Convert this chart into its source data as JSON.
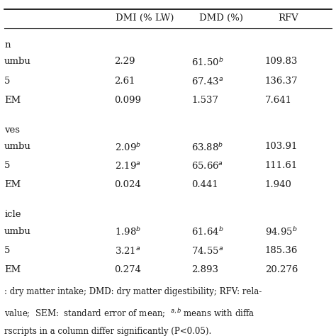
{
  "col_headers": [
    "DMI (% LW)",
    "DMD (%)",
    "RFV"
  ],
  "sections": [
    {
      "label": "n",
      "rows": [
        {
          "label": "umbu",
          "dmi": "2.29",
          "dmi_sup": "",
          "dmd": "61.50",
          "dmd_sup": "b",
          "rfv": "109.83",
          "rfv_sup": ""
        },
        {
          "label": "5",
          "dmi": "2.61",
          "dmi_sup": "",
          "dmd": "67.43",
          "dmd_sup": "a",
          "rfv": "136.37",
          "rfv_sup": ""
        },
        {
          "label": "EM",
          "dmi": "0.099",
          "dmi_sup": "",
          "dmd": "1.537",
          "dmd_sup": "",
          "rfv": "7.641",
          "rfv_sup": ""
        }
      ]
    },
    {
      "label": "ves",
      "rows": [
        {
          "label": "umbu",
          "dmi": "2.09",
          "dmi_sup": "b",
          "dmd": "63.88",
          "dmd_sup": "b",
          "rfv": "103.91",
          "rfv_sup": ""
        },
        {
          "label": "5",
          "dmi": "2.19",
          "dmi_sup": "a",
          "dmd": "65.66",
          "dmd_sup": "a",
          "rfv": "111.61",
          "rfv_sup": ""
        },
        {
          "label": "EM",
          "dmi": "0.024",
          "dmi_sup": "",
          "dmd": "0.441",
          "dmd_sup": "",
          "rfv": "1.940",
          "rfv_sup": ""
        }
      ]
    },
    {
      "label": "icle",
      "rows": [
        {
          "label": "umbu",
          "dmi": "1.98",
          "dmi_sup": "b",
          "dmd": "61.64",
          "dmd_sup": "b",
          "rfv": "94.95",
          "rfv_sup": "b"
        },
        {
          "label": "5",
          "dmi": "3.21",
          "dmi_sup": "a",
          "dmd": "74.55",
          "dmd_sup": "a",
          "rfv": "185.36",
          "rfv_sup": ""
        },
        {
          "label": "EM",
          "dmi": "0.274",
          "dmi_sup": "",
          "dmd": "2.893",
          "dmd_sup": "",
          "rfv": "20.276",
          "rfv_sup": ""
        }
      ]
    }
  ],
  "footnote_lines": [
    ": dry matter intake; DMD: dry matter digestibility; RFV: rela-",
    "value;  SEM:  standard error of mean;  a,b means with diffa",
    "rscripts in a column differ significantly (P<0.05)."
  ],
  "bg_color": "#ffffff",
  "text_color": "#1a1a1a",
  "font_size": 9.5,
  "footnote_font_size": 8.5
}
